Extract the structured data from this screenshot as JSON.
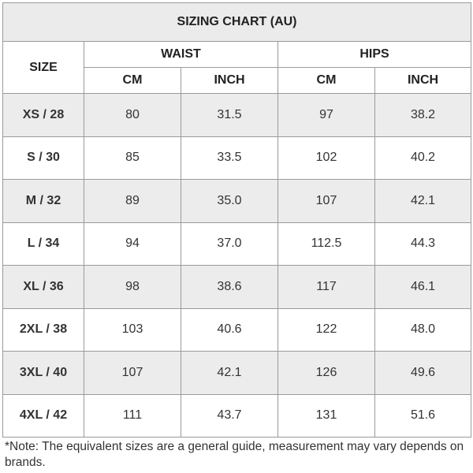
{
  "title": "SIZING CHART (AU)",
  "headers": {
    "size": "SIZE",
    "waist": "WAIST",
    "hips": "HIPS",
    "units": [
      "CM",
      "INCH",
      "CM",
      "INCH"
    ]
  },
  "rows": [
    {
      "size": "XS / 28",
      "waist_cm": "80",
      "waist_inch": "31.5",
      "hips_cm": "97",
      "hips_inch": "38.2"
    },
    {
      "size": "S / 30",
      "waist_cm": "85",
      "waist_inch": "33.5",
      "hips_cm": "102",
      "hips_inch": "40.2"
    },
    {
      "size": "M / 32",
      "waist_cm": "89",
      "waist_inch": "35.0",
      "hips_cm": "107",
      "hips_inch": "42.1"
    },
    {
      "size": "L / 34",
      "waist_cm": "94",
      "waist_inch": "37.0",
      "hips_cm": "112.5",
      "hips_inch": "44.3"
    },
    {
      "size": "XL / 36",
      "waist_cm": "98",
      "waist_inch": "38.6",
      "hips_cm": "117",
      "hips_inch": "46.1"
    },
    {
      "size": "2XL / 38",
      "waist_cm": "103",
      "waist_inch": "40.6",
      "hips_cm": "122",
      "hips_inch": "48.0"
    },
    {
      "size": "3XL / 40",
      "waist_cm": "107",
      "waist_inch": "42.1",
      "hips_cm": "126",
      "hips_inch": "49.6"
    },
    {
      "size": "4XL / 42",
      "waist_cm": "111",
      "waist_inch": "43.7",
      "hips_cm": "131",
      "hips_inch": "51.6"
    }
  ],
  "note": "*Note: The equivalent sizes are a general guide, measurement may vary depends on brands."
}
